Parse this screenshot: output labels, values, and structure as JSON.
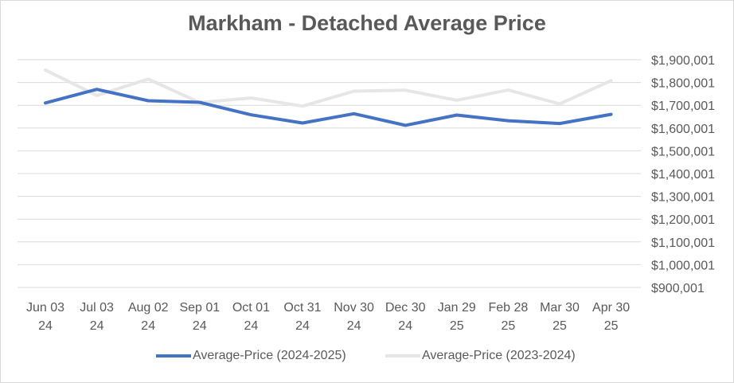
{
  "chart_data": {
    "type": "line",
    "title": "Markham - Detached Average Price",
    "categories": [
      [
        "Jun 03",
        "24"
      ],
      [
        "Jul 03",
        "24"
      ],
      [
        "Aug 02",
        "24"
      ],
      [
        "Sep 01",
        "24"
      ],
      [
        "Oct 01",
        "24"
      ],
      [
        "Oct 31",
        "24"
      ],
      [
        "Nov 30",
        "24"
      ],
      [
        "Dec 30",
        "24"
      ],
      [
        "Jan 29",
        "25"
      ],
      [
        "Feb 28",
        "25"
      ],
      [
        "Mar 30",
        "25"
      ],
      [
        "Apr 30",
        "25"
      ]
    ],
    "series": [
      {
        "name": "Average-Price (2024-2025)",
        "color": "#4472c4",
        "values": [
          1710001,
          1770001,
          1720001,
          1713001,
          1658001,
          1622001,
          1663001,
          1612001,
          1657001,
          1632001,
          1620001,
          1660001
        ]
      },
      {
        "name": "Average-Price (2023-2024)",
        "color": "#e6e6e6",
        "values": [
          1855001,
          1743001,
          1815001,
          1712001,
          1732001,
          1696001,
          1762001,
          1766001,
          1722001,
          1767001,
          1706001,
          1808001
        ]
      }
    ],
    "y_ticks": [
      "$900,001",
      "$1,000,001",
      "$1,100,001",
      "$1,200,001",
      "$1,300,001",
      "$1,400,001",
      "$1,500,001",
      "$1,600,001",
      "$1,700,001",
      "$1,800,001",
      "$1,900,001"
    ],
    "ylim": [
      900001,
      1900001
    ],
    "y_axis_position": "right",
    "grid": true,
    "legend_position": "bottom",
    "grid_color": "#d9d9d9"
  }
}
